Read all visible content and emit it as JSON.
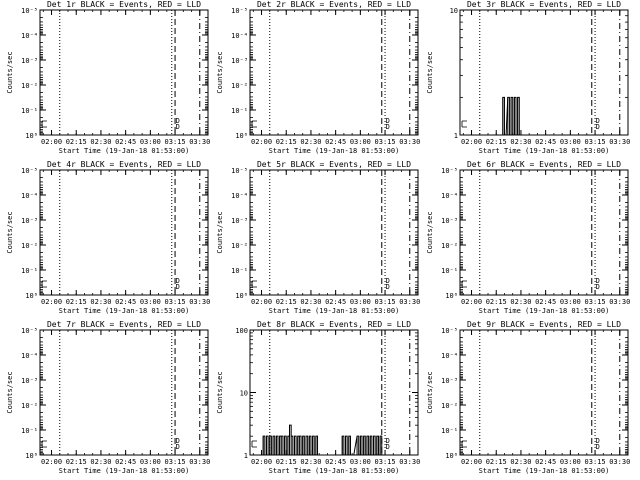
{
  "chart_data": [
    {
      "type": "line",
      "title": "Det 1r BLACK = Events, RED = LLD",
      "xlabel": "Start Time (19-Jan-18 01:53:00)",
      "ylabel": "Counts/sec",
      "xticks": [
        "02:00",
        "02:15",
        "02:30",
        "02:45",
        "03:00",
        "03:15",
        "03:30"
      ],
      "yscale": "log",
      "ytick_labels": [
        "10⁰",
        "10⁻¹",
        "10⁻²",
        "10⁻³",
        "10⁻⁴",
        "10⁻⁵"
      ],
      "ytick_values": [
        1,
        0.1,
        0.01,
        0.001,
        0.0001,
        1e-05
      ],
      "ylim": [
        1,
        1e-05
      ],
      "xlim": [
        "01:53",
        "03:35"
      ],
      "vlines": [
        {
          "x": "02:05",
          "style": "dotted"
        },
        {
          "x": "03:13",
          "style": "dotted"
        },
        {
          "x": "03:15",
          "style": "dashed"
        },
        {
          "x": "03:30",
          "style": "dash-dot"
        }
      ],
      "annotation": "D",
      "series": []
    },
    {
      "type": "line",
      "title": "Det 2r BLACK = Events, RED = LLD",
      "xlabel": "Start Time (19-Jan-18 01:53:00)",
      "ylabel": "Counts/sec",
      "xticks": [
        "02:00",
        "02:15",
        "02:30",
        "02:45",
        "03:00",
        "03:15",
        "03:30"
      ],
      "yscale": "log",
      "ytick_labels": [
        "10⁰",
        "10⁻¹",
        "10⁻²",
        "10⁻³",
        "10⁻⁴",
        "10⁻⁵"
      ],
      "ytick_values": [
        1,
        0.1,
        0.01,
        0.001,
        0.0001,
        1e-05
      ],
      "ylim": [
        1,
        1e-05
      ],
      "xlim": [
        "01:53",
        "03:35"
      ],
      "vlines": [
        {
          "x": "02:05",
          "style": "dotted"
        },
        {
          "x": "03:13",
          "style": "dashed"
        },
        {
          "x": "03:15",
          "style": "dotted"
        },
        {
          "x": "03:30",
          "style": "dash-dot"
        }
      ],
      "annotation": "D",
      "series": []
    },
    {
      "type": "line",
      "title": "Det 3r BLACK = Events, RED = LLD",
      "xlabel": "Start Time (19-Jan-18 01:53:00)",
      "ylabel": "Counts/sec",
      "xticks": [
        "02:00",
        "02:15",
        "02:30",
        "02:45",
        "03:00",
        "03:15",
        "03:30"
      ],
      "yscale": "log",
      "ytick_labels": [
        "1",
        "10"
      ],
      "ytick_values": [
        1,
        10
      ],
      "ylim": [
        1,
        10
      ],
      "xlim": [
        "01:53",
        "03:35"
      ],
      "vlines": [
        {
          "x": "02:05",
          "style": "dotted"
        },
        {
          "x": "03:13",
          "style": "dashed"
        },
        {
          "x": "03:15",
          "style": "dotted"
        },
        {
          "x": "03:30",
          "style": "dash-dot"
        }
      ],
      "annotation": "D",
      "series": [
        {
          "color": "#000000",
          "points": [
            [
              "02:18",
              1
            ],
            [
              "02:19",
              2
            ],
            [
              "02:20",
              1
            ],
            [
              "02:22",
              2
            ],
            [
              "02:23",
              1
            ],
            [
              "02:24",
              2
            ],
            [
              "02:25",
              1
            ],
            [
              "02:26",
              2
            ],
            [
              "02:27",
              1
            ],
            [
              "02:28",
              2
            ],
            [
              "02:29",
              1
            ]
          ]
        }
      ]
    },
    {
      "type": "line",
      "title": "Det 4r BLACK = Events, RED = LLD",
      "xlabel": "Start Time (19-Jan-18 01:53:00)",
      "ylabel": "Counts/sec",
      "xticks": [
        "02:00",
        "02:15",
        "02:30",
        "02:45",
        "03:00",
        "03:15",
        "03:30"
      ],
      "yscale": "log",
      "ytick_labels": [
        "10⁰",
        "10⁻¹",
        "10⁻²",
        "10⁻³",
        "10⁻⁴",
        "10⁻⁵"
      ],
      "ytick_values": [
        1,
        0.1,
        0.01,
        0.001,
        0.0001,
        1e-05
      ],
      "ylim": [
        1,
        1e-05
      ],
      "xlim": [
        "01:53",
        "03:35"
      ],
      "vlines": [
        {
          "x": "02:05",
          "style": "dotted"
        },
        {
          "x": "03:13",
          "style": "dotted"
        },
        {
          "x": "03:15",
          "style": "dashed"
        },
        {
          "x": "03:30",
          "style": "dash-dot"
        }
      ],
      "annotation": "D",
      "series": []
    },
    {
      "type": "line",
      "title": "Det 5r BLACK = Events, RED = LLD",
      "xlabel": "Start Time (19-Jan-18 01:53:00)",
      "ylabel": "Counts/sec",
      "xticks": [
        "02:00",
        "02:15",
        "02:30",
        "02:45",
        "03:00",
        "03:15",
        "03:30"
      ],
      "yscale": "log",
      "ytick_labels": [
        "10⁰",
        "10⁻¹",
        "10⁻²",
        "10⁻³",
        "10⁻⁴",
        "10⁻⁵"
      ],
      "ytick_values": [
        1,
        0.1,
        0.01,
        0.001,
        0.0001,
        1e-05
      ],
      "ylim": [
        1,
        1e-05
      ],
      "xlim": [
        "01:53",
        "03:35"
      ],
      "vlines": [
        {
          "x": "02:05",
          "style": "dotted"
        },
        {
          "x": "03:13",
          "style": "dashed"
        },
        {
          "x": "03:15",
          "style": "dotted"
        },
        {
          "x": "03:30",
          "style": "dash-dot"
        }
      ],
      "annotation": "D",
      "series": []
    },
    {
      "type": "line",
      "title": "Det 6r BLACK = Events, RED = LLD",
      "xlabel": "Start Time (19-Jan-18 01:53:00)",
      "ylabel": "Counts/sec",
      "xticks": [
        "02:00",
        "02:15",
        "02:30",
        "02:45",
        "03:00",
        "03:15",
        "03:30"
      ],
      "yscale": "log",
      "ytick_labels": [
        "10⁰",
        "10⁻¹",
        "10⁻²",
        "10⁻³",
        "10⁻⁴",
        "10⁻⁵"
      ],
      "ytick_values": [
        1,
        0.1,
        0.01,
        0.001,
        0.0001,
        1e-05
      ],
      "ylim": [
        1,
        1e-05
      ],
      "xlim": [
        "01:53",
        "03:35"
      ],
      "vlines": [
        {
          "x": "02:05",
          "style": "dotted"
        },
        {
          "x": "03:13",
          "style": "dashed"
        },
        {
          "x": "03:15",
          "style": "dotted"
        },
        {
          "x": "03:30",
          "style": "dash-dot"
        }
      ],
      "annotation": "D",
      "series": []
    },
    {
      "type": "line",
      "title": "Det 7r BLACK = Events, RED = LLD",
      "xlabel": "Start Time (19-Jan-18 01:53:00)",
      "ylabel": "Counts/sec",
      "xticks": [
        "02:00",
        "02:15",
        "02:30",
        "02:45",
        "03:00",
        "03:15",
        "03:30"
      ],
      "yscale": "log",
      "ytick_labels": [
        "10⁰",
        "10⁻¹",
        "10⁻²",
        "10⁻³",
        "10⁻⁴",
        "10⁻⁵"
      ],
      "ytick_values": [
        1,
        0.1,
        0.01,
        0.001,
        0.0001,
        1e-05
      ],
      "ylim": [
        1,
        1e-05
      ],
      "xlim": [
        "01:53",
        "03:35"
      ],
      "vlines": [
        {
          "x": "02:05",
          "style": "dotted"
        },
        {
          "x": "03:13",
          "style": "dotted"
        },
        {
          "x": "03:15",
          "style": "dashed"
        },
        {
          "x": "03:30",
          "style": "dash-dot"
        }
      ],
      "annotation": "D",
      "series": []
    },
    {
      "type": "line",
      "title": "Det 8r BLACK = Events, RED = LLD",
      "xlabel": "Start Time (19-Jan-18 01:53:00)",
      "ylabel": "Counts/sec",
      "xticks": [
        "02:00",
        "02:15",
        "02:30",
        "02:45",
        "03:00",
        "03:15",
        "03:30"
      ],
      "yscale": "log",
      "ytick_labels": [
        "1",
        "10",
        "100"
      ],
      "ytick_values": [
        1,
        10,
        100
      ],
      "ylim": [
        1,
        100
      ],
      "xlim": [
        "01:53",
        "03:35"
      ],
      "vlines": [
        {
          "x": "02:05",
          "style": "dotted"
        },
        {
          "x": "03:13",
          "style": "dashed"
        },
        {
          "x": "03:15",
          "style": "dotted"
        },
        {
          "x": "03:30",
          "style": "dash-dot"
        }
      ],
      "annotation": "D",
      "series": [
        {
          "color": "#000000",
          "points": [
            [
              "02:00",
              1
            ],
            [
              "02:01",
              2
            ],
            [
              "02:02",
              1
            ],
            [
              "02:03",
              2
            ],
            [
              "02:04",
              1
            ],
            [
              "02:05",
              2
            ],
            [
              "02:06",
              1
            ],
            [
              "02:07",
              2
            ],
            [
              "02:08",
              1
            ],
            [
              "02:09",
              2
            ],
            [
              "02:10",
              1
            ],
            [
              "02:11",
              2
            ],
            [
              "02:12",
              2
            ],
            [
              "02:13",
              1
            ],
            [
              "02:14",
              2
            ],
            [
              "02:15",
              1
            ],
            [
              "02:16",
              2
            ],
            [
              "02:17",
              3
            ],
            [
              "02:18",
              2
            ],
            [
              "02:19",
              1
            ],
            [
              "02:20",
              2
            ],
            [
              "02:21",
              1
            ],
            [
              "02:22",
              2
            ],
            [
              "02:23",
              2
            ],
            [
              "02:24",
              1
            ],
            [
              "02:25",
              2
            ],
            [
              "02:26",
              1
            ],
            [
              "02:27",
              2
            ],
            [
              "02:28",
              1
            ],
            [
              "02:29",
              2
            ],
            [
              "02:30",
              1
            ],
            [
              "02:31",
              2
            ],
            [
              "02:32",
              1
            ],
            [
              "02:33",
              2
            ],
            [
              "02:34",
              1
            ],
            [
              "02:35",
              1
            ],
            [
              "02:48",
              1
            ],
            [
              "02:49",
              2
            ],
            [
              "02:50",
              1
            ],
            [
              "02:51",
              2
            ],
            [
              "02:52",
              1
            ],
            [
              "02:53",
              2
            ],
            [
              "02:54",
              1
            ],
            [
              "02:55",
              1
            ],
            [
              "02:58",
              2
            ],
            [
              "02:59",
              1
            ],
            [
              "03:00",
              2
            ],
            [
              "03:01",
              1
            ],
            [
              "03:02",
              2
            ],
            [
              "03:03",
              1
            ],
            [
              "03:04",
              2
            ],
            [
              "03:05",
              1
            ],
            [
              "03:06",
              2
            ],
            [
              "03:07",
              1
            ],
            [
              "03:08",
              2
            ],
            [
              "03:09",
              1
            ],
            [
              "03:10",
              2
            ],
            [
              "03:11",
              1
            ],
            [
              "03:12",
              2
            ],
            [
              "03:13",
              1
            ]
          ]
        }
      ]
    },
    {
      "type": "line",
      "title": "Det 9r BLACK = Events, RED = LLD",
      "xlabel": "Start Time (19-Jan-18 01:53:00)",
      "ylabel": "Counts/sec",
      "xticks": [
        "02:00",
        "02:15",
        "02:30",
        "02:45",
        "03:00",
        "03:15",
        "03:30"
      ],
      "yscale": "log",
      "ytick_labels": [
        "10⁰",
        "10⁻¹",
        "10⁻²",
        "10⁻³",
        "10⁻⁴",
        "10⁻⁵"
      ],
      "ytick_values": [
        1,
        0.1,
        0.01,
        0.001,
        0.0001,
        1e-05
      ],
      "ylim": [
        1,
        1e-05
      ],
      "xlim": [
        "01:53",
        "03:35"
      ],
      "vlines": [
        {
          "x": "02:05",
          "style": "dotted"
        },
        {
          "x": "03:13",
          "style": "dashed"
        },
        {
          "x": "03:15",
          "style": "dotted"
        },
        {
          "x": "03:30",
          "style": "dash-dot"
        }
      ],
      "annotation": "D",
      "series": []
    }
  ]
}
